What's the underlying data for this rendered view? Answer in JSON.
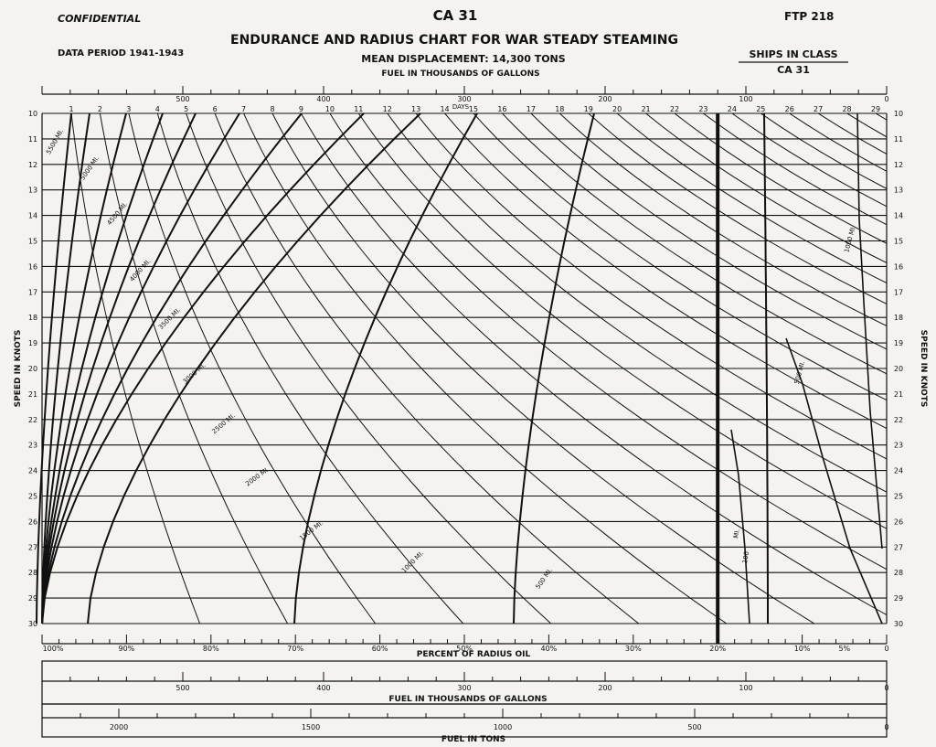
{
  "header": {
    "classification": "CONFIDENTIAL",
    "ship": "CA 31",
    "publication": "FTP 218",
    "title": "ENDURANCE AND RADIUS CHART FOR WAR STEADY STEAMING",
    "data_period": "DATA PERIOD 1941-1943",
    "displacement": "MEAN DISPLACEMENT: 14,300 TONS",
    "ships_in_class_label": "SHIPS IN CLASS",
    "ships_in_class_value": "CA 31"
  },
  "chart_data": {
    "type": "line",
    "title": "ENDURANCE AND RADIUS CHART FOR WAR STEADY STEAMING",
    "top_scale_label": "FUEL IN THOUSANDS OF GALLONS",
    "top_scale_ticks": [
      "500",
      "400",
      "300",
      "200",
      "100",
      "0"
    ],
    "days_label": "DAYS",
    "days": [
      "1",
      "2",
      "3",
      "4",
      "5",
      "6",
      "7",
      "8",
      "9",
      "10",
      "11",
      "12",
      "13",
      "14",
      "15",
      "16",
      "17",
      "18",
      "19",
      "20",
      "21",
      "22",
      "23",
      "24",
      "25",
      "26",
      "27",
      "28",
      "29"
    ],
    "ylabel": "SPEED IN KNOTS",
    "speeds": [
      10,
      11,
      12,
      13,
      14,
      15,
      16,
      17,
      18,
      19,
      20,
      21,
      22,
      23,
      24,
      25,
      26,
      27,
      28,
      29,
      30
    ],
    "ylim": [
      10,
      30
    ],
    "radius_oil": {
      "label": "PERCENT OF RADIUS OIL",
      "ticks": [
        "100%",
        "90%",
        "80%",
        "70%",
        "60%",
        "50%",
        "40%",
        "30%",
        "20%",
        "10%",
        "5%",
        "0"
      ],
      "marked_reference_percent": 20
    },
    "fuel_gallons": {
      "label": "FUEL IN THOUSANDS OF GALLONS",
      "ticks": [
        "500",
        "400",
        "300",
        "200",
        "100",
        "0"
      ],
      "max": 600
    },
    "fuel_tons": {
      "label": "FUEL IN TONS",
      "ticks": [
        "2000",
        "1500",
        "1000",
        "500",
        "0"
      ],
      "max": 2200
    },
    "radius_curves": [
      {
        "label": "5500 MI.",
        "miles": 5500
      },
      {
        "label": "5000 MI.",
        "miles": 5000
      },
      {
        "label": "4500 MI.",
        "miles": 4500
      },
      {
        "label": "4000 MI.",
        "miles": 4000
      },
      {
        "label": "3500 MI.",
        "miles": 3500
      },
      {
        "label": "3000 MI.",
        "miles": 3000
      },
      {
        "label": "2500 MI.",
        "miles": 2500
      },
      {
        "label": "2000 MI.",
        "miles": 2000
      },
      {
        "label": "1500 MI.",
        "miles": 1500
      },
      {
        "label": "1000 MI.",
        "miles": 1000
      },
      {
        "label": "500 MI.",
        "miles": 500
      },
      {
        "label": "MI.",
        "miles": 100
      },
      {
        "label": "100",
        "miles": 100
      },
      {
        "label": "500 MI.",
        "miles": 500
      },
      {
        "label": "1000 MI.",
        "miles": 1000
      }
    ]
  }
}
